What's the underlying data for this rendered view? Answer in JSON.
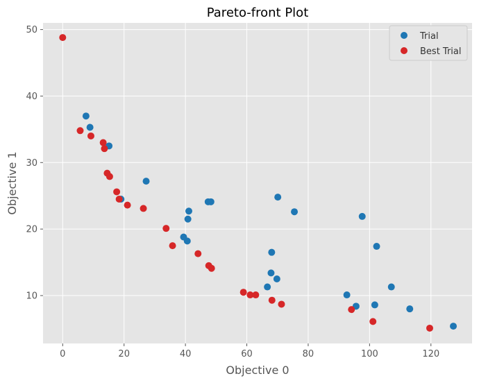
{
  "chart_data": {
    "type": "scatter",
    "title": "Pareto-front Plot",
    "xlabel": "Objective 0",
    "ylabel": "Objective 1",
    "xlim": [
      -6.4,
      133.4
    ],
    "ylim": [
      2.8,
      51.0
    ],
    "xticks": [
      0,
      20,
      40,
      60,
      80,
      100,
      120
    ],
    "yticks": [
      10,
      20,
      30,
      40,
      50
    ],
    "grid": true,
    "legend_position": "top-right",
    "series": [
      {
        "name": "Trial",
        "color": "#1f77b4",
        "points": [
          {
            "x": 7.6,
            "y": 37.0
          },
          {
            "x": 8.9,
            "y": 35.3
          },
          {
            "x": 15.1,
            "y": 32.5
          },
          {
            "x": 27.2,
            "y": 27.2
          },
          {
            "x": 19.0,
            "y": 24.5
          },
          {
            "x": 41.1,
            "y": 22.7
          },
          {
            "x": 40.8,
            "y": 21.5
          },
          {
            "x": 47.4,
            "y": 24.1
          },
          {
            "x": 48.3,
            "y": 24.1
          },
          {
            "x": 70.1,
            "y": 24.8
          },
          {
            "x": 75.5,
            "y": 22.6
          },
          {
            "x": 39.4,
            "y": 18.8
          },
          {
            "x": 40.6,
            "y": 18.2
          },
          {
            "x": 68.1,
            "y": 16.5
          },
          {
            "x": 67.9,
            "y": 13.4
          },
          {
            "x": 69.8,
            "y": 12.5
          },
          {
            "x": 66.7,
            "y": 11.3
          },
          {
            "x": 97.6,
            "y": 21.9
          },
          {
            "x": 102.3,
            "y": 17.4
          },
          {
            "x": 107.1,
            "y": 11.3
          },
          {
            "x": 92.6,
            "y": 10.1
          },
          {
            "x": 95.6,
            "y": 8.4
          },
          {
            "x": 101.7,
            "y": 8.6
          },
          {
            "x": 113.1,
            "y": 8.0
          },
          {
            "x": 127.3,
            "y": 5.4
          }
        ]
      },
      {
        "name": "Best Trial",
        "color": "#d62728",
        "points": [
          {
            "x": 0.0,
            "y": 48.8
          },
          {
            "x": 5.7,
            "y": 34.8
          },
          {
            "x": 9.2,
            "y": 34.0
          },
          {
            "x": 13.2,
            "y": 33.0
          },
          {
            "x": 13.6,
            "y": 32.1
          },
          {
            "x": 14.5,
            "y": 28.4
          },
          {
            "x": 15.3,
            "y": 27.9
          },
          {
            "x": 17.6,
            "y": 25.6
          },
          {
            "x": 18.4,
            "y": 24.5
          },
          {
            "x": 21.1,
            "y": 23.6
          },
          {
            "x": 26.3,
            "y": 23.1
          },
          {
            "x": 33.7,
            "y": 20.1
          },
          {
            "x": 35.8,
            "y": 17.5
          },
          {
            "x": 44.1,
            "y": 16.3
          },
          {
            "x": 47.6,
            "y": 14.5
          },
          {
            "x": 48.5,
            "y": 14.1
          },
          {
            "x": 58.9,
            "y": 10.5
          },
          {
            "x": 61.1,
            "y": 10.1
          },
          {
            "x": 62.9,
            "y": 10.1
          },
          {
            "x": 68.2,
            "y": 9.3
          },
          {
            "x": 71.3,
            "y": 8.7
          },
          {
            "x": 94.1,
            "y": 7.9
          },
          {
            "x": 101.1,
            "y": 6.1
          },
          {
            "x": 119.6,
            "y": 5.1
          }
        ]
      }
    ]
  }
}
